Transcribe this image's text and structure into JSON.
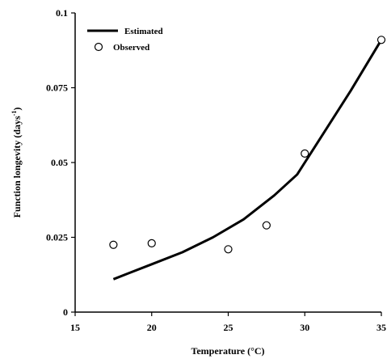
{
  "chart_data": {
    "type": "line",
    "xlabel": "Temperature (°C)",
    "ylabel": "Function longevity (days",
    "ylabel_sup": "-1",
    "ylabel_close": ")",
    "xlim": [
      15,
      35
    ],
    "ylim": [
      0,
      0.1
    ],
    "xticks": [
      15,
      20,
      25,
      30,
      35
    ],
    "xtick_labels": [
      "15",
      "20",
      "25",
      "30",
      "35"
    ],
    "yticks": [
      0,
      0.025,
      0.05,
      0.075,
      0.1
    ],
    "ytick_labels": [
      "0",
      "0.025",
      "0.05",
      "0.075",
      "0.1"
    ],
    "legend_position": "top-left",
    "series": [
      {
        "name": "Estimated",
        "style": "line",
        "color": "#000000",
        "x": [
          17.5,
          18.5,
          20,
          22,
          24,
          26,
          28,
          29.5,
          31,
          33,
          35
        ],
        "y": [
          0.011,
          0.013,
          0.016,
          0.02,
          0.025,
          0.031,
          0.039,
          0.046,
          0.058,
          0.074,
          0.091
        ]
      },
      {
        "name": "Observed",
        "style": "scatter",
        "marker": "circle-open",
        "color": "#000000",
        "x": [
          17.5,
          20,
          25,
          27.5,
          30,
          35
        ],
        "y": [
          0.0225,
          0.023,
          0.021,
          0.029,
          0.053,
          0.091
        ]
      }
    ]
  }
}
